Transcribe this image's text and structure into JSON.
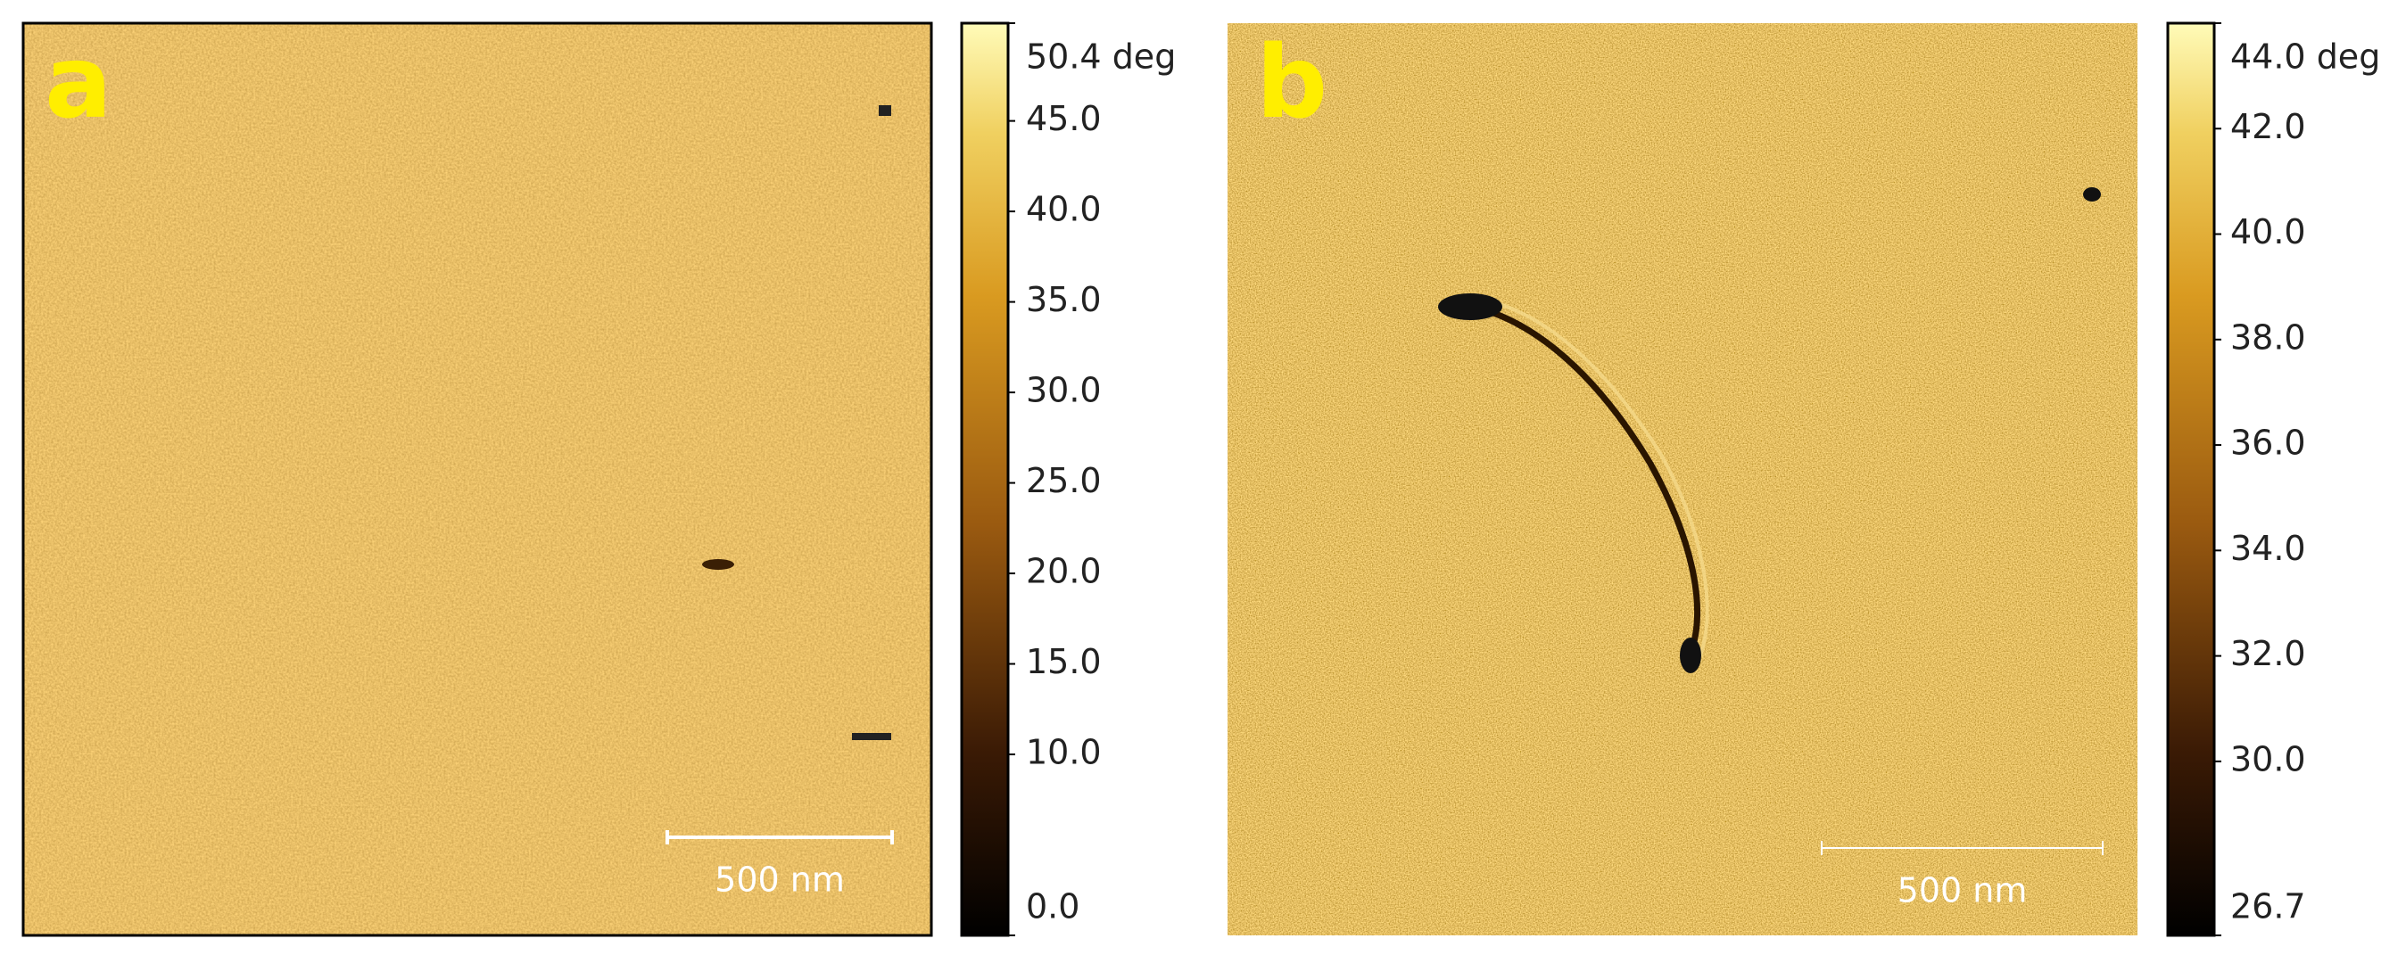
{
  "panels": [
    {
      "label": "a",
      "scale_bar": "500 nm",
      "colorbar": {
        "lim": [
          0,
          50.4
        ],
        "ticks": [
          {
            "value": 50.4,
            "label": "50.4 deg"
          },
          {
            "value": 45,
            "label": "45.0"
          },
          {
            "value": 40,
            "label": "40.0"
          },
          {
            "value": 35,
            "label": "35.0"
          },
          {
            "value": 30,
            "label": "30.0"
          },
          {
            "value": 25,
            "label": "25.0"
          },
          {
            "value": 20,
            "label": "20.0"
          },
          {
            "value": 15,
            "label": "15.0"
          },
          {
            "value": 10,
            "label": "10.0"
          },
          {
            "value": 0,
            "label": "0.0"
          }
        ]
      }
    },
    {
      "label": "b",
      "scale_bar": "500 nm",
      "colorbar": {
        "lim": [
          26.7,
          44.0
        ],
        "ticks": [
          {
            "value": 44.0,
            "label": "44.0 deg"
          },
          {
            "value": 42,
            "label": "42.0"
          },
          {
            "value": 40,
            "label": "40.0"
          },
          {
            "value": 38,
            "label": "38.0"
          },
          {
            "value": 36,
            "label": "36.0"
          },
          {
            "value": 34,
            "label": "34.0"
          },
          {
            "value": 32,
            "label": "32.0"
          },
          {
            "value": 30,
            "label": "30.0"
          },
          {
            "value": 26.7,
            "label": "26.7"
          }
        ]
      }
    }
  ]
}
